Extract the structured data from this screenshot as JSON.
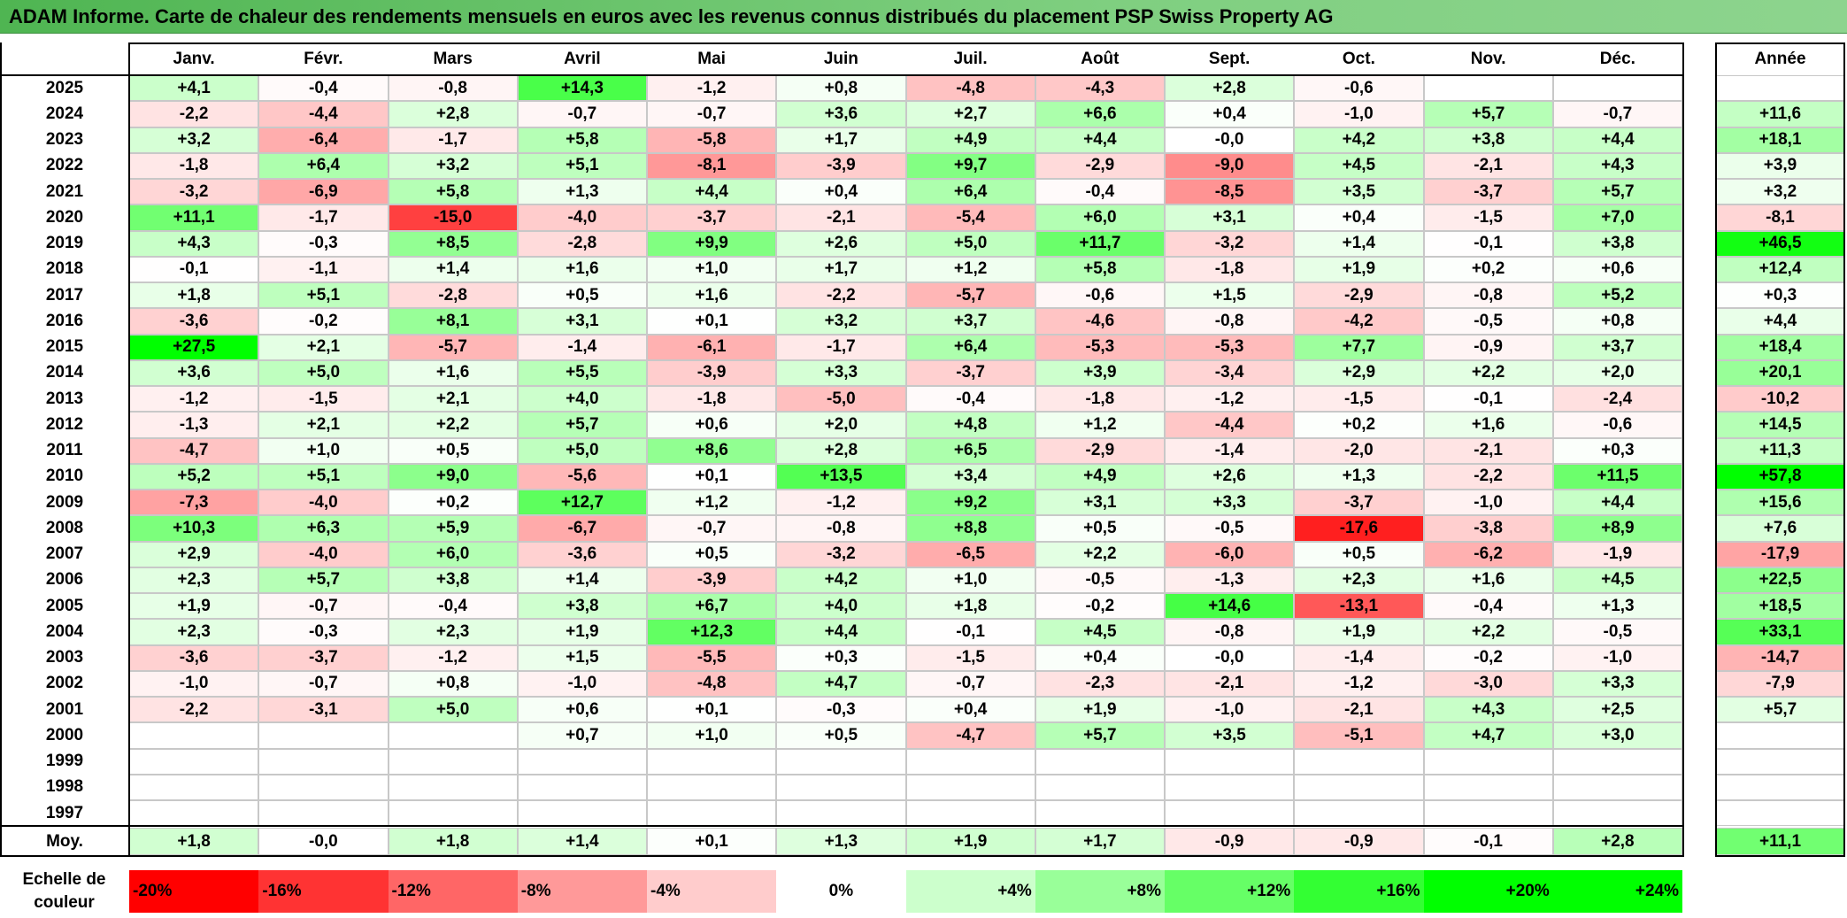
{
  "title": "ADAM Informe. Carte de chaleur des rendements mensuels en euros avec les revenus connus distribués du placement PSP Swiss Property AG",
  "chart_data": {
    "type": "heatmap",
    "title": "ADAM Informe. Carte de chaleur des rendements mensuels en euros avec les revenus connus distribués du placement PSP Swiss Property AG",
    "columns": [
      "Janv.",
      "Févr.",
      "Mars",
      "Avril",
      "Mai",
      "Juin",
      "Juil.",
      "Août",
      "Sept.",
      "Oct.",
      "Nov.",
      "Déc."
    ],
    "year_column_label": "Année",
    "rows": [
      {
        "year": "2025",
        "values": [
          "+4,1",
          "-0,4",
          "-0,8",
          "+14,3",
          "-1,2",
          "+0,8",
          "-4,8",
          "-4,3",
          "+2,8",
          "-0,6",
          "",
          ""
        ],
        "annual": ""
      },
      {
        "year": "2024",
        "values": [
          "-2,2",
          "-4,4",
          "+2,8",
          "-0,7",
          "-0,7",
          "+3,6",
          "+2,7",
          "+6,6",
          "+0,4",
          "-1,0",
          "+5,7",
          "-0,7"
        ],
        "annual": "+11,6"
      },
      {
        "year": "2023",
        "values": [
          "+3,2",
          "-6,4",
          "-1,7",
          "+5,8",
          "-5,8",
          "+1,7",
          "+4,9",
          "+4,4",
          "-0,0",
          "+4,2",
          "+3,8",
          "+4,4"
        ],
        "annual": "+18,1"
      },
      {
        "year": "2022",
        "values": [
          "-1,8",
          "+6,4",
          "+3,2",
          "+5,1",
          "-8,1",
          "-3,9",
          "+9,7",
          "-2,9",
          "-9,0",
          "+4,5",
          "-2,1",
          "+4,3"
        ],
        "annual": "+3,9"
      },
      {
        "year": "2021",
        "values": [
          "-3,2",
          "-6,9",
          "+5,8",
          "+1,3",
          "+4,4",
          "+0,4",
          "+6,4",
          "-0,4",
          "-8,5",
          "+3,5",
          "-3,7",
          "+5,7"
        ],
        "annual": "+3,2"
      },
      {
        "year": "2020",
        "values": [
          "+11,1",
          "-1,7",
          "-15,0",
          "-4,0",
          "-3,7",
          "-2,1",
          "-5,4",
          "+6,0",
          "+3,1",
          "+0,4",
          "-1,5",
          "+7,0"
        ],
        "annual": "-8,1"
      },
      {
        "year": "2019",
        "values": [
          "+4,3",
          "-0,3",
          "+8,5",
          "-2,8",
          "+9,9",
          "+2,6",
          "+5,0",
          "+11,7",
          "-3,2",
          "+1,4",
          "-0,1",
          "+3,8"
        ],
        "annual": "+46,5"
      },
      {
        "year": "2018",
        "values": [
          "-0,1",
          "-1,1",
          "+1,4",
          "+1,6",
          "+1,0",
          "+1,7",
          "+1,2",
          "+5,8",
          "-1,8",
          "+1,9",
          "+0,2",
          "+0,6"
        ],
        "annual": "+12,4"
      },
      {
        "year": "2017",
        "values": [
          "+1,8",
          "+5,1",
          "-2,8",
          "+0,5",
          "+1,6",
          "-2,2",
          "-5,7",
          "-0,6",
          "+1,5",
          "-2,9",
          "-0,8",
          "+5,2"
        ],
        "annual": "+0,3"
      },
      {
        "year": "2016",
        "values": [
          "-3,6",
          "-0,2",
          "+8,1",
          "+3,1",
          "+0,1",
          "+3,2",
          "+3,7",
          "-4,6",
          "-0,8",
          "-4,2",
          "-0,5",
          "+0,8"
        ],
        "annual": "+4,4"
      },
      {
        "year": "2015",
        "values": [
          "+27,5",
          "+2,1",
          "-5,7",
          "-1,4",
          "-6,1",
          "-1,7",
          "+6,4",
          "-5,3",
          "-5,3",
          "+7,7",
          "-0,9",
          "+3,7"
        ],
        "annual": "+18,4"
      },
      {
        "year": "2014",
        "values": [
          "+3,6",
          "+5,0",
          "+1,6",
          "+5,5",
          "-3,9",
          "+3,3",
          "-3,7",
          "+3,9",
          "-3,4",
          "+2,9",
          "+2,2",
          "+2,0"
        ],
        "annual": "+20,1"
      },
      {
        "year": "2013",
        "values": [
          "-1,2",
          "-1,5",
          "+2,1",
          "+4,0",
          "-1,8",
          "-5,0",
          "-0,4",
          "-1,8",
          "-1,2",
          "-1,5",
          "-0,1",
          "-2,4"
        ],
        "annual": "-10,2"
      },
      {
        "year": "2012",
        "values": [
          "-1,3",
          "+2,1",
          "+2,2",
          "+5,7",
          "+0,6",
          "+2,0",
          "+4,8",
          "+1,2",
          "-4,4",
          "+0,2",
          "+1,6",
          "-0,6"
        ],
        "annual": "+14,5"
      },
      {
        "year": "2011",
        "values": [
          "-4,7",
          "+1,0",
          "+0,5",
          "+5,0",
          "+8,6",
          "+2,8",
          "+6,5",
          "-2,9",
          "-1,4",
          "-2,0",
          "-2,1",
          "+0,3"
        ],
        "annual": "+11,3"
      },
      {
        "year": "2010",
        "values": [
          "+5,2",
          "+5,1",
          "+9,0",
          "-5,6",
          "+0,1",
          "+13,5",
          "+3,4",
          "+4,9",
          "+2,6",
          "+1,3",
          "-2,2",
          "+11,5"
        ],
        "annual": "+57,8"
      },
      {
        "year": "2009",
        "values": [
          "-7,3",
          "-4,0",
          "+0,2",
          "+12,7",
          "+1,2",
          "-1,2",
          "+9,2",
          "+3,1",
          "+3,3",
          "-3,7",
          "-1,0",
          "+4,4"
        ],
        "annual": "+15,6"
      },
      {
        "year": "2008",
        "values": [
          "+10,3",
          "+6,3",
          "+5,9",
          "-6,7",
          "-0,7",
          "-0,8",
          "+8,8",
          "+0,5",
          "-0,5",
          "-17,6",
          "-3,8",
          "+8,9"
        ],
        "annual": "+7,6"
      },
      {
        "year": "2007",
        "values": [
          "+2,9",
          "-4,0",
          "+6,0",
          "-3,6",
          "+0,5",
          "-3,2",
          "-6,5",
          "+2,2",
          "-6,0",
          "+0,5",
          "-6,2",
          "-1,9"
        ],
        "annual": "-17,9"
      },
      {
        "year": "2006",
        "values": [
          "+2,3",
          "+5,7",
          "+3,8",
          "+1,4",
          "-3,9",
          "+4,2",
          "+1,0",
          "-0,5",
          "-1,3",
          "+2,3",
          "+1,6",
          "+4,5"
        ],
        "annual": "+22,5"
      },
      {
        "year": "2005",
        "values": [
          "+1,9",
          "-0,7",
          "-0,4",
          "+3,8",
          "+6,7",
          "+4,0",
          "+1,8",
          "-0,2",
          "+14,6",
          "-13,1",
          "-0,4",
          "+1,3"
        ],
        "annual": "+18,5"
      },
      {
        "year": "2004",
        "values": [
          "+2,3",
          "-0,3",
          "+2,3",
          "+1,9",
          "+12,3",
          "+4,4",
          "-0,1",
          "+4,5",
          "-0,8",
          "+1,9",
          "+2,2",
          "-0,5"
        ],
        "annual": "+33,1"
      },
      {
        "year": "2003",
        "values": [
          "-3,6",
          "-3,7",
          "-1,2",
          "+1,5",
          "-5,5",
          "+0,3",
          "-1,5",
          "+0,4",
          "-0,0",
          "-1,4",
          "-0,2",
          "-1,0"
        ],
        "annual": "-14,7"
      },
      {
        "year": "2002",
        "values": [
          "-1,0",
          "-0,7",
          "+0,8",
          "-1,0",
          "-4,8",
          "+4,7",
          "-0,7",
          "-2,3",
          "-2,1",
          "-1,2",
          "-3,0",
          "+3,3"
        ],
        "annual": "-7,9"
      },
      {
        "year": "2001",
        "values": [
          "-2,2",
          "-3,1",
          "+5,0",
          "+0,6",
          "+0,1",
          "-0,3",
          "+0,4",
          "+1,9",
          "-1,0",
          "-2,1",
          "+4,3",
          "+2,5"
        ],
        "annual": "+5,7"
      },
      {
        "year": "2000",
        "values": [
          "",
          "",
          "",
          "+0,7",
          "+1,0",
          "+0,5",
          "-4,7",
          "+5,7",
          "+3,5",
          "-5,1",
          "+4,7",
          "+3,0"
        ],
        "annual": ""
      },
      {
        "year": "1999",
        "values": [
          "",
          "",
          "",
          "",
          "",
          "",
          "",
          "",
          "",
          "",
          "",
          ""
        ],
        "annual": ""
      },
      {
        "year": "1998",
        "values": [
          "",
          "",
          "",
          "",
          "",
          "",
          "",
          "",
          "",
          "",
          "",
          ""
        ],
        "annual": ""
      },
      {
        "year": "1997",
        "values": [
          "",
          "",
          "",
          "",
          "",
          "",
          "",
          "",
          "",
          "",
          "",
          ""
        ],
        "annual": ""
      }
    ],
    "average": {
      "label": "Moy.",
      "values": [
        "+1,8",
        "-0,0",
        "+1,8",
        "+1,4",
        "+0,1",
        "+1,3",
        "+1,9",
        "+1,7",
        "-0,9",
        "-0,9",
        "-0,1",
        "+2,8"
      ],
      "annual": "+11,1"
    },
    "color_scale": {
      "label_line1": "Echelle de",
      "label_line2": "couleur",
      "steps": [
        {
          "label": "-20%",
          "value": -20,
          "color": "#ff0000"
        },
        {
          "label": "-16%",
          "value": -16,
          "color": "#ff3333"
        },
        {
          "label": "-12%",
          "value": -12,
          "color": "#ff6666"
        },
        {
          "label": "-8%",
          "value": -8,
          "color": "#ff9999"
        },
        {
          "label": "-4%",
          "value": -4,
          "color": "#ffcccc"
        },
        {
          "label": "0%",
          "value": 0,
          "color": "#ffffff"
        },
        {
          "label": "+4%",
          "value": 4,
          "color": "#ccffcc"
        },
        {
          "label": "+8%",
          "value": 8,
          "color": "#99ff99"
        },
        {
          "label": "+12%",
          "value": 12,
          "color": "#66ff66"
        },
        {
          "label": "+16%",
          "value": 16,
          "color": "#33ff33"
        },
        {
          "label": "+20%",
          "value": 20,
          "color": "#00ff00"
        },
        {
          "label": "+24%",
          "value": 24,
          "color": "#00ff00"
        }
      ]
    }
  }
}
